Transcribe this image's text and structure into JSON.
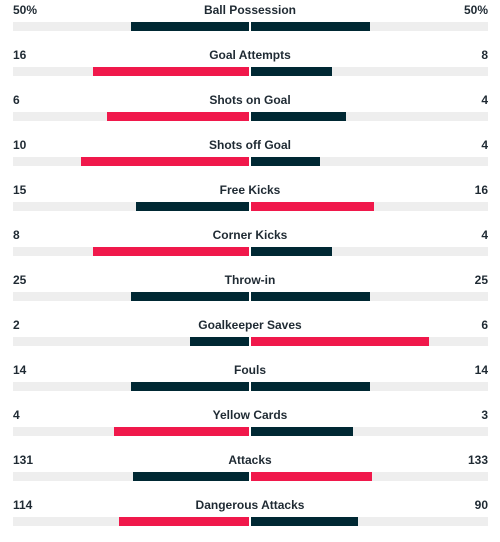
{
  "colors": {
    "leader": "#f0184b",
    "trailer": "#002833",
    "track": "#eeeeee",
    "text": "#1f2a33"
  },
  "stats": [
    {
      "label": "Ball Possession",
      "home": "50%",
      "away": "50%",
      "home_share": 0.5,
      "away_share": 0.5,
      "home_color": "#002833",
      "away_color": "#002833"
    },
    {
      "label": "Goal Attempts",
      "home": "16",
      "away": "8",
      "home_share": 0.66,
      "away_share": 0.34,
      "home_color": "#f0184b",
      "away_color": "#002833"
    },
    {
      "label": "Shots on Goal",
      "home": "6",
      "away": "4",
      "home_share": 0.6,
      "away_share": 0.4,
      "home_color": "#f0184b",
      "away_color": "#002833"
    },
    {
      "label": "Shots off Goal",
      "home": "10",
      "away": "4",
      "home_share": 0.71,
      "away_share": 0.29,
      "home_color": "#f0184b",
      "away_color": "#002833"
    },
    {
      "label": "Free Kicks",
      "home": "15",
      "away": "16",
      "home_share": 0.48,
      "away_share": 0.52,
      "home_color": "#002833",
      "away_color": "#f0184b"
    },
    {
      "label": "Corner Kicks",
      "home": "8",
      "away": "4",
      "home_share": 0.66,
      "away_share": 0.34,
      "home_color": "#f0184b",
      "away_color": "#002833"
    },
    {
      "label": "Throw-in",
      "home": "25",
      "away": "25",
      "home_share": 0.5,
      "away_share": 0.5,
      "home_color": "#002833",
      "away_color": "#002833"
    },
    {
      "label": "Goalkeeper Saves",
      "home": "2",
      "away": "6",
      "home_share": 0.25,
      "away_share": 0.75,
      "home_color": "#002833",
      "away_color": "#f0184b"
    },
    {
      "label": "Fouls",
      "home": "14",
      "away": "14",
      "home_share": 0.5,
      "away_share": 0.5,
      "home_color": "#002833",
      "away_color": "#002833"
    },
    {
      "label": "Yellow Cards",
      "home": "4",
      "away": "3",
      "home_share": 0.57,
      "away_share": 0.43,
      "home_color": "#f0184b",
      "away_color": "#002833"
    },
    {
      "label": "Attacks",
      "home": "131",
      "away": "133",
      "home_share": 0.49,
      "away_share": 0.51,
      "home_color": "#002833",
      "away_color": "#f0184b"
    },
    {
      "label": "Dangerous Attacks",
      "home": "114",
      "away": "90",
      "home_share": 0.55,
      "away_share": 0.45,
      "home_color": "#f0184b",
      "away_color": "#002833"
    }
  ]
}
